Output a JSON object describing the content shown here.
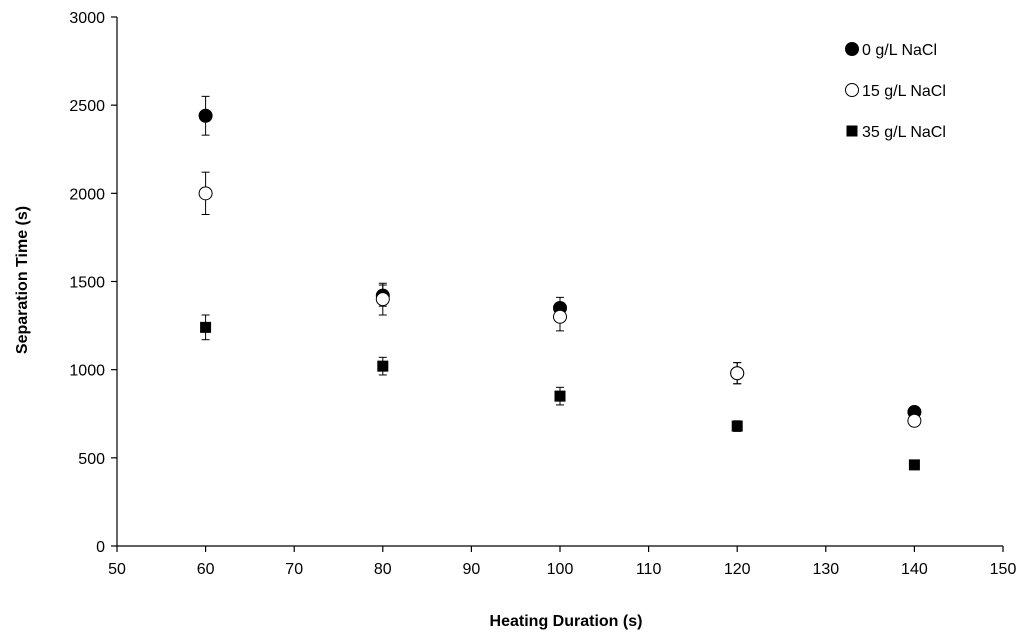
{
  "chart_data": {
    "type": "scatter",
    "xlabel": "Heating Duration (s)",
    "ylabel": "Separation Time (s)",
    "xlim": [
      50,
      150
    ],
    "ylim": [
      0,
      3000
    ],
    "xticks": [
      "50",
      "60",
      "70",
      "80",
      "90",
      "100",
      "110",
      "120",
      "130",
      "140",
      "150"
    ],
    "yticks": [
      "0",
      "500",
      "1000",
      "1500",
      "2000",
      "2500",
      "3000"
    ],
    "grid": false,
    "legend_position": "top-right",
    "series": [
      {
        "name": "0 g/L NaCl",
        "marker": "filled-circle",
        "color": "#000000",
        "x": [
          60,
          80,
          100,
          120,
          140
        ],
        "y": [
          2440,
          1420,
          1350,
          980,
          760
        ],
        "err": [
          110,
          60,
          60,
          60,
          20
        ]
      },
      {
        "name": "15 g/L NaCl",
        "marker": "open-circle",
        "color": "#000000",
        "x": [
          60,
          80,
          100,
          120,
          140
        ],
        "y": [
          2000,
          1400,
          1300,
          980,
          710
        ],
        "err": [
          120,
          90,
          80,
          60,
          30
        ]
      },
      {
        "name": "35 g/L NaCl",
        "marker": "filled-square",
        "color": "#000000",
        "x": [
          60,
          80,
          100,
          120,
          140
        ],
        "y": [
          1240,
          1020,
          850,
          680,
          460
        ],
        "err": [
          70,
          50,
          50,
          30,
          10
        ]
      }
    ]
  }
}
